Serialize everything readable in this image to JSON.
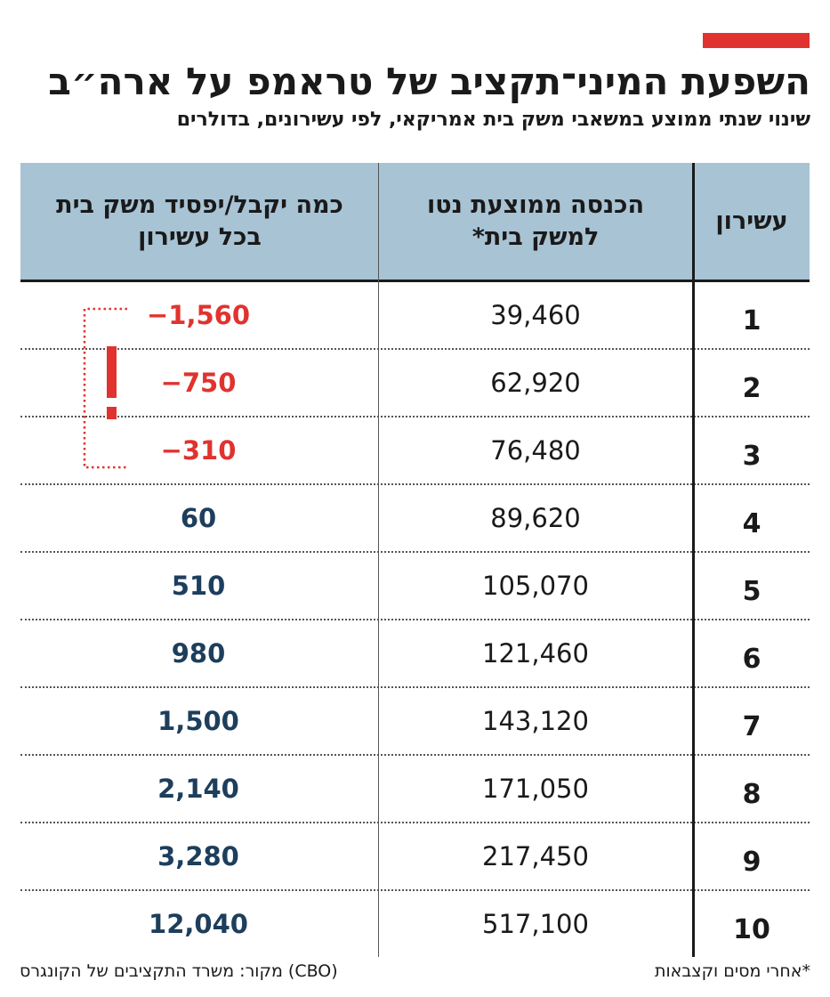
{
  "header": {
    "title": "השפעת המיני־תקציב של טראמפ על ארה״ב",
    "subtitle": "שינוי שנתי ממוצע במשאבי משק בית אמריקאי, לפי עשירונים, בדולרים"
  },
  "table": {
    "col_decile": "עשירון",
    "col_income_line1": "הכנסה ממוצעת נטו",
    "col_income_line2": "למשק בית*",
    "col_change_line1": "כמה יקבל/יפסיד משק בית",
    "col_change_line2": "בכל עשירון"
  },
  "chart_data": {
    "type": "table",
    "title": "השפעת המיני־תקציב של טראמפ על ארה״ב",
    "subtitle": "שינוי שנתי ממוצע במשאבי משק בית אמריקאי, לפי עשירונים, בדולרים",
    "columns": [
      "עשירון",
      "הכנסה ממוצעת נטו למשק בית*",
      "כמה יקבל/יפסיד משק בית בכל עשירון"
    ],
    "rows": [
      {
        "decile": "1",
        "income": "39,460",
        "change": "−1,560",
        "change_value": -1560
      },
      {
        "decile": "2",
        "income": "62,920",
        "change": "−750",
        "change_value": -750
      },
      {
        "decile": "3",
        "income": "76,480",
        "change": "−310",
        "change_value": -310
      },
      {
        "decile": "4",
        "income": "89,620",
        "change": "60",
        "change_value": 60
      },
      {
        "decile": "5",
        "income": "105,070",
        "change": "510",
        "change_value": 510
      },
      {
        "decile": "6",
        "income": "121,460",
        "change": "980",
        "change_value": 980
      },
      {
        "decile": "7",
        "income": "143,120",
        "change": "1,500",
        "change_value": 1500
      },
      {
        "decile": "8",
        "income": "171,050",
        "change": "2,140",
        "change_value": 2140
      },
      {
        "decile": "9",
        "income": "217,450",
        "change": "3,280",
        "change_value": 3280
      },
      {
        "decile": "10",
        "income": "517,100",
        "change": "12,040",
        "change_value": 12040
      }
    ]
  },
  "colors": {
    "accent": "#e0332f",
    "header_bg": "#a8c3d4",
    "negative": "#e0332f",
    "positive": "#1d3e5c"
  },
  "footer": {
    "source": "מקור: משרד התקציבים של הקונגרס (CBO)",
    "note": "*אחרי מסים וקצבאות"
  }
}
